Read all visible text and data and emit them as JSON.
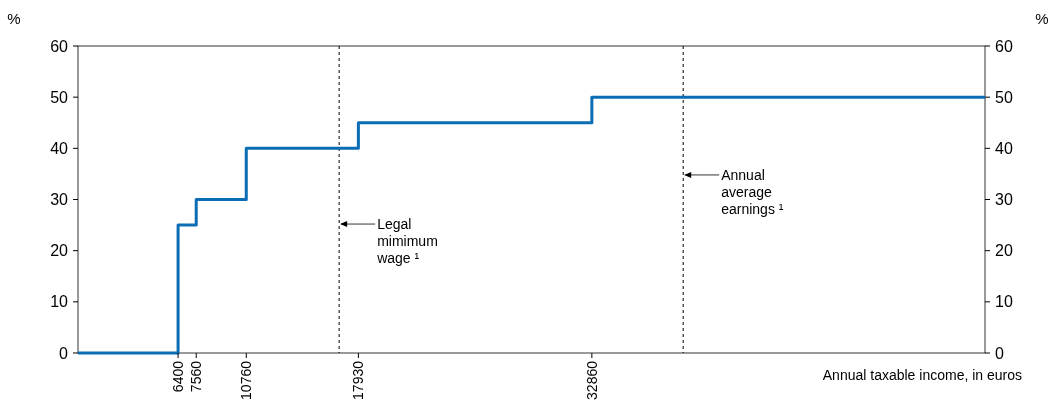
{
  "chart_data": {
    "type": "step",
    "x": [
      0,
      6400,
      7560,
      10760,
      17930,
      32860,
      58000
    ],
    "series": [
      {
        "color": "#0b6db3",
        "values": [
          0,
          25,
          30,
          40,
          45,
          50,
          50
        ]
      }
    ],
    "xlim": [
      0,
      58000
    ],
    "xticks": [
      6400,
      7560,
      10760,
      17930,
      32860
    ],
    "ylim": [
      0,
      60
    ],
    "yticks": [
      0,
      10,
      20,
      30,
      40,
      50,
      60
    ],
    "y2lim": [
      0,
      60
    ],
    "y2ticks": [
      0,
      10,
      20,
      30,
      40,
      50,
      60
    ],
    "ylabel": "%",
    "y2label": "%",
    "xlabel": "Annual taxable income, in euros",
    "ref_lines": [
      {
        "axis": "x",
        "value": 16700,
        "label": "Legal\nmimimum\nwage ¹",
        "line_style": "dashed",
        "color": "#000000"
      },
      {
        "axis": "x",
        "value": 38700,
        "label": "Annual\naverage\nearnings ¹",
        "line_style": "dashed",
        "color": "#000000"
      }
    ],
    "grid": false,
    "line_style": "solid"
  }
}
